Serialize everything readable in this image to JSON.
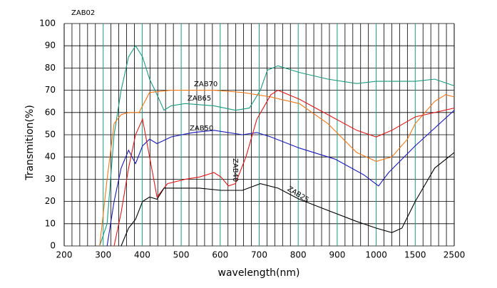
{
  "chart_data": {
    "type": "line",
    "title": "ZAB02",
    "x_label": "wavelength(nm)",
    "y_label": "Transmition(%)",
    "xlim": [
      200,
      2500
    ],
    "xticks": [
      200,
      300,
      400,
      500,
      600,
      700,
      800,
      900,
      1000,
      1500,
      2500
    ],
    "ylim": [
      0,
      100
    ],
    "yticks": [
      0,
      10,
      20,
      30,
      40,
      50,
      60,
      70,
      80,
      90,
      100
    ],
    "grid": true,
    "annotations": [
      "ZAB70",
      "ZAB65",
      "ZAB50",
      "ZAB40",
      "ZAB25"
    ],
    "series": [
      {
        "name": "ZAB65",
        "color": "#1a9a80",
        "x": [
          291,
          310,
          328,
          346,
          365,
          383,
          401,
          419,
          438,
          456,
          474,
          511,
          584,
          639,
          675,
          703,
          721,
          748,
          803,
          876,
          950,
          1000,
          1500,
          2000,
          2500
        ],
        "values": [
          0,
          10,
          50,
          70,
          85,
          90,
          85,
          75,
          68,
          61,
          63,
          64,
          63,
          61,
          62,
          70,
          79,
          81,
          78,
          75,
          73,
          74,
          74,
          75,
          72
        ]
      },
      {
        "name": "ZAB70",
        "color": "#f07818",
        "x": [
          291,
          310,
          328,
          346,
          365,
          392,
          419,
          474,
          584,
          657,
          730,
          803,
          876,
          950,
          1000,
          1200,
          1400,
          1500,
          2000,
          2280,
          2500
        ],
        "values": [
          0,
          30,
          55,
          59,
          60,
          60,
          69,
          70,
          70,
          69,
          67,
          64,
          55,
          42,
          38,
          40,
          48,
          55,
          65,
          68,
          67
        ]
      },
      {
        "name": "ZAB50",
        "color": "#1818b8",
        "x": [
          310,
          328,
          346,
          365,
          383,
          401,
          419,
          438,
          474,
          530,
          584,
          657,
          694,
          730,
          803,
          895,
          968,
          1030,
          1160,
          1500,
          2500
        ],
        "values": [
          0,
          20,
          35,
          43,
          37,
          45,
          48,
          46,
          49,
          51,
          52,
          50,
          51,
          49,
          44,
          39,
          32,
          27,
          33,
          45,
          61
        ]
      },
      {
        "name": "ZAB40",
        "color": "#e01818",
        "x": [
          328,
          346,
          365,
          383,
          401,
          419,
          438,
          465,
          511,
          547,
          584,
          602,
          621,
          639,
          666,
          694,
          730,
          748,
          803,
          876,
          950,
          1000,
          1200,
          1500,
          2500
        ],
        "values": [
          0,
          15,
          35,
          50,
          57,
          40,
          22,
          28,
          30,
          31,
          33,
          31,
          27,
          28,
          40,
          57,
          68,
          70,
          66,
          59,
          52,
          49,
          52,
          58,
          62
        ]
      },
      {
        "name": "ZAB25",
        "color": "#000000",
        "x": [
          346,
          365,
          383,
          401,
          419,
          438,
          456,
          493,
          547,
          602,
          657,
          703,
          748,
          803,
          876,
          950,
          1000,
          1200,
          1330,
          1500,
          2000,
          2500
        ],
        "values": [
          0,
          8,
          12,
          20,
          22,
          21,
          26,
          26,
          26,
          25,
          25,
          28,
          26,
          21,
          16,
          11,
          8,
          6,
          8,
          20,
          35,
          42
        ]
      }
    ]
  }
}
